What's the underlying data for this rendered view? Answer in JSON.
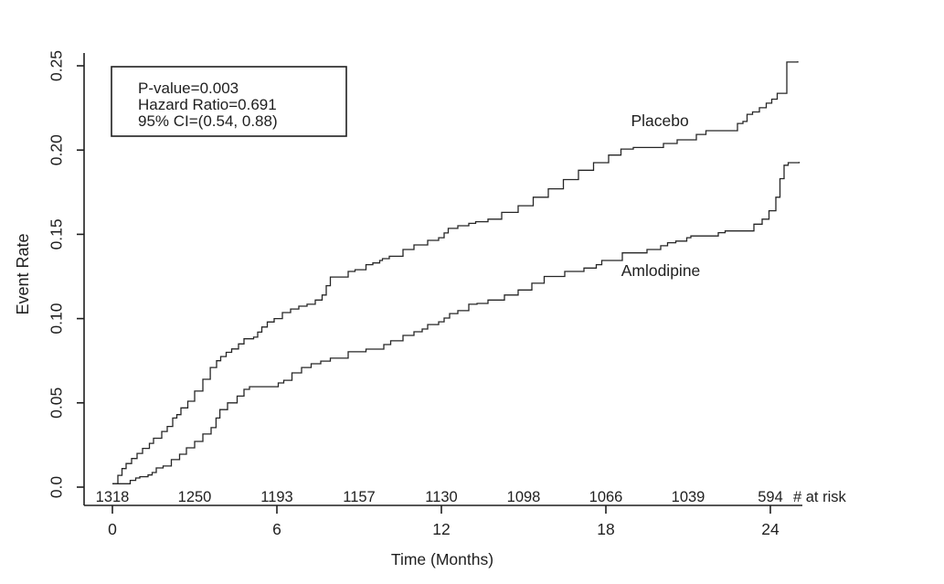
{
  "colors": {
    "background": "#ffffff",
    "axis": "#1f1f1f",
    "curve": "#262626",
    "text": "#1f1f1f",
    "box_border": "#1f1f1f"
  },
  "chart_data": {
    "type": "line",
    "subtype": "kaplan-meier-step",
    "title": "",
    "xlabel": "Time (Months)",
    "ylabel": "Event Rate",
    "xlim": [
      -1,
      25.4
    ],
    "ylim": [
      0,
      0.2565
    ],
    "grid": false,
    "legend_position": "inline-curve-labels",
    "xticks": [
      0,
      6,
      12,
      18,
      24
    ],
    "xtick_labels": [
      "0",
      "6",
      "12",
      "18",
      "24"
    ],
    "yticks": [
      0,
      0.05,
      0.1,
      0.15,
      0.2,
      0.25
    ],
    "ytick_labels": [
      "0.0",
      "0.05",
      "0.10",
      "0.15",
      "0.20",
      "0.25"
    ],
    "annotation": {
      "lines": [
        "P-value=0.003",
        "Hazard Ratio=0.691",
        "95% CI=(0.54, 0.88)"
      ]
    },
    "series": [
      {
        "name": "Placebo",
        "label": "Placebo",
        "label_at": {
          "month": 19.97,
          "rate": 0.2175
        },
        "points": [
          [
            0,
            0.002
          ],
          [
            0.2,
            0.007
          ],
          [
            0.35,
            0.011
          ],
          [
            0.5,
            0.014
          ],
          [
            0.7,
            0.017
          ],
          [
            0.9,
            0.02
          ],
          [
            1.1,
            0.023
          ],
          [
            1.35,
            0.026
          ],
          [
            1.5,
            0.029
          ],
          [
            1.8,
            0.033
          ],
          [
            2.0,
            0.036
          ],
          [
            2.2,
            0.041
          ],
          [
            2.35,
            0.043
          ],
          [
            2.5,
            0.047
          ],
          [
            2.75,
            0.051
          ],
          [
            3.0,
            0.057
          ],
          [
            3.3,
            0.064
          ],
          [
            3.57,
            0.071
          ],
          [
            3.8,
            0.075
          ],
          [
            3.95,
            0.0775
          ],
          [
            4.15,
            0.08
          ],
          [
            4.35,
            0.082
          ],
          [
            4.6,
            0.085
          ],
          [
            4.8,
            0.088
          ],
          [
            5.15,
            0.089
          ],
          [
            5.3,
            0.092
          ],
          [
            5.45,
            0.095
          ],
          [
            5.65,
            0.098
          ],
          [
            5.9,
            0.1
          ],
          [
            6.2,
            0.1036
          ],
          [
            6.5,
            0.1057
          ],
          [
            6.8,
            0.1074
          ],
          [
            7.1,
            0.1085
          ],
          [
            7.4,
            0.111
          ],
          [
            7.65,
            0.114
          ],
          [
            7.8,
            0.1195
          ],
          [
            7.95,
            0.1247
          ],
          [
            8.6,
            0.128
          ],
          [
            8.85,
            0.129
          ],
          [
            9.25,
            0.132
          ],
          [
            9.5,
            0.133
          ],
          [
            9.75,
            0.1345
          ],
          [
            9.85,
            0.1356
          ],
          [
            10.1,
            0.137
          ],
          [
            10.6,
            0.141
          ],
          [
            11.0,
            0.1437
          ],
          [
            11.5,
            0.1464
          ],
          [
            11.9,
            0.148
          ],
          [
            12.1,
            0.1508
          ],
          [
            12.25,
            0.1535
          ],
          [
            12.6,
            0.1551
          ],
          [
            13.0,
            0.1565
          ],
          [
            13.25,
            0.1575
          ],
          [
            13.7,
            0.159
          ],
          [
            14.2,
            0.163
          ],
          [
            14.8,
            0.167
          ],
          [
            15.35,
            0.172
          ],
          [
            15.9,
            0.177
          ],
          [
            16.45,
            0.1825
          ],
          [
            17.0,
            0.188
          ],
          [
            17.55,
            0.1925
          ],
          [
            18.1,
            0.197
          ],
          [
            18.55,
            0.2006
          ],
          [
            19.0,
            0.2015
          ],
          [
            20.1,
            0.2039
          ],
          [
            20.6,
            0.2061
          ],
          [
            21.3,
            0.2093
          ],
          [
            21.65,
            0.2115
          ],
          [
            22.8,
            0.2158
          ],
          [
            23.0,
            0.217
          ],
          [
            23.15,
            0.2212
          ],
          [
            23.35,
            0.2226
          ],
          [
            23.6,
            0.2251
          ],
          [
            23.85,
            0.2278
          ],
          [
            24.05,
            0.2302
          ],
          [
            24.25,
            0.2337
          ],
          [
            24.6,
            0.2522
          ],
          [
            25.0,
            0.2527
          ]
        ]
      },
      {
        "name": "Amlodipine",
        "label": "Amlodipine",
        "label_at": {
          "month": 20.0,
          "rate": 0.1285
        },
        "points": [
          [
            0,
            0.002
          ],
          [
            0.65,
            0.004
          ],
          [
            0.85,
            0.0054
          ],
          [
            1.0,
            0.0062
          ],
          [
            1.3,
            0.0072
          ],
          [
            1.45,
            0.0087
          ],
          [
            1.6,
            0.0114
          ],
          [
            1.85,
            0.0125
          ],
          [
            2.15,
            0.0163
          ],
          [
            2.45,
            0.0195
          ],
          [
            2.7,
            0.0233
          ],
          [
            3.0,
            0.0271
          ],
          [
            3.3,
            0.0315
          ],
          [
            3.6,
            0.0353
          ],
          [
            3.78,
            0.041
          ],
          [
            3.92,
            0.046
          ],
          [
            4.2,
            0.05
          ],
          [
            4.55,
            0.054
          ],
          [
            4.8,
            0.058
          ],
          [
            5.0,
            0.0596
          ],
          [
            6.05,
            0.0618
          ],
          [
            6.25,
            0.0634
          ],
          [
            6.55,
            0.0678
          ],
          [
            6.9,
            0.071
          ],
          [
            7.25,
            0.0732
          ],
          [
            7.6,
            0.0748
          ],
          [
            7.95,
            0.0765
          ],
          [
            8.6,
            0.0803
          ],
          [
            9.25,
            0.0819
          ],
          [
            9.9,
            0.0846
          ],
          [
            10.15,
            0.0868
          ],
          [
            10.6,
            0.09
          ],
          [
            11.0,
            0.0922
          ],
          [
            11.3,
            0.0938
          ],
          [
            11.5,
            0.0965
          ],
          [
            11.9,
            0.0981
          ],
          [
            12.1,
            0.1003
          ],
          [
            12.3,
            0.103
          ],
          [
            12.6,
            0.1047
          ],
          [
            13.0,
            0.1085
          ],
          [
            13.3,
            0.109
          ],
          [
            13.7,
            0.111
          ],
          [
            14.3,
            0.114
          ],
          [
            14.8,
            0.117
          ],
          [
            15.3,
            0.121
          ],
          [
            15.75,
            0.125
          ],
          [
            16.5,
            0.128
          ],
          [
            17.2,
            0.13
          ],
          [
            17.65,
            0.132
          ],
          [
            17.85,
            0.1345
          ],
          [
            18.6,
            0.139
          ],
          [
            19.5,
            0.141
          ],
          [
            20.0,
            0.1432
          ],
          [
            20.25,
            0.145
          ],
          [
            20.55,
            0.146
          ],
          [
            20.95,
            0.148
          ],
          [
            21.1,
            0.149
          ],
          [
            22.1,
            0.151
          ],
          [
            22.35,
            0.152
          ],
          [
            23.4,
            0.156
          ],
          [
            23.7,
            0.159
          ],
          [
            23.95,
            0.164
          ],
          [
            24.2,
            0.172
          ],
          [
            24.35,
            0.183
          ],
          [
            24.5,
            0.191
          ],
          [
            24.65,
            0.1925
          ],
          [
            25.05,
            0.193
          ]
        ]
      }
    ],
    "risk_table": {
      "label": "# at risk",
      "months": [
        0,
        3,
        6,
        9,
        12,
        15,
        18,
        21,
        24
      ],
      "values": [
        "1318",
        "1250",
        "1193",
        "1157",
        "1130",
        "1098",
        "1066",
        "1039",
        "594"
      ]
    }
  }
}
